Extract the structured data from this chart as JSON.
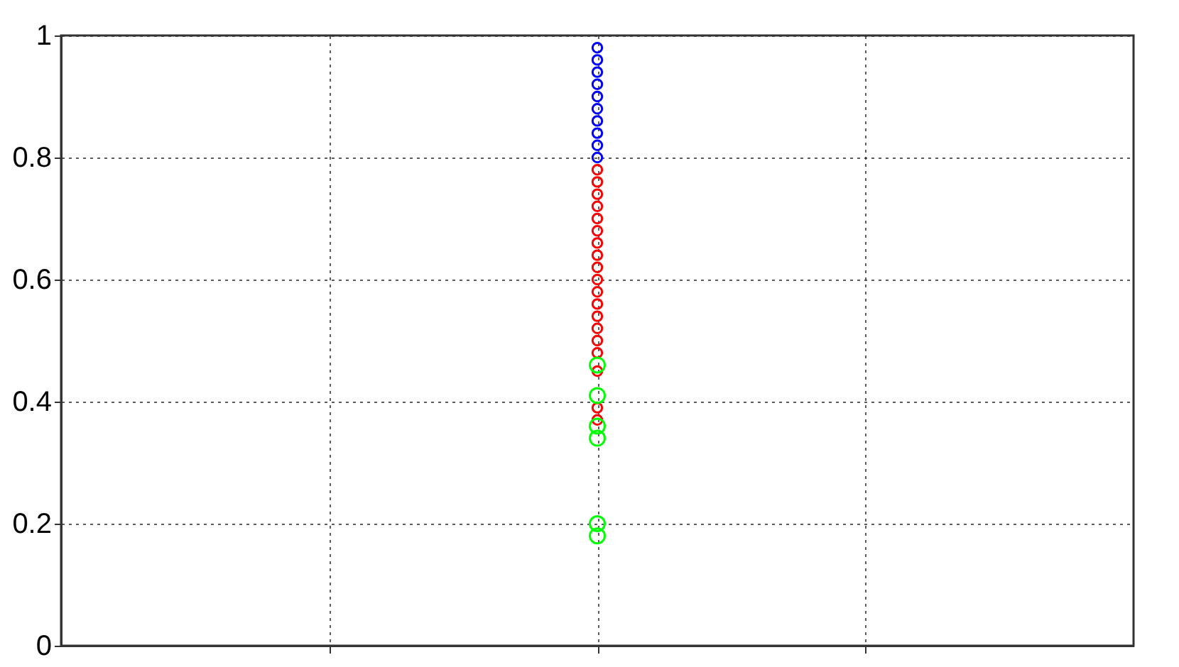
{
  "chart_data": {
    "type": "scatter",
    "categories": [
      null,
      null,
      null
    ],
    "ylim": [
      0,
      1
    ],
    "yticks": [
      0,
      0.2,
      0.4,
      0.6,
      0.8,
      1
    ],
    "grid": true,
    "marker": "circle",
    "tick_labels": "y",
    "series": [
      {
        "color": "#0000ff",
        "values": [
          null,
          0.98,
          null
        ]
      },
      {
        "color": "#0000ff",
        "values": [
          null,
          0.96,
          null
        ]
      },
      {
        "color": "#0000ff",
        "values": [
          null,
          0.94,
          null
        ]
      },
      {
        "color": "#0000ff",
        "values": [
          null,
          0.92,
          null
        ]
      },
      {
        "color": "#0000ff",
        "values": [
          null,
          0.9,
          null
        ]
      },
      {
        "color": "#0000ff",
        "values": [
          null,
          0.88,
          null
        ]
      },
      {
        "color": "#0000ff",
        "values": [
          null,
          0.86,
          null
        ]
      },
      {
        "color": "#0000ff",
        "values": [
          null,
          0.84,
          null
        ]
      },
      {
        "color": "#0000ff",
        "values": [
          null,
          0.82,
          null
        ]
      },
      {
        "color": "#0000ff",
        "values": [
          null,
          0.8,
          null
        ]
      },
      {
        "color": "#ff0000",
        "values": [
          null,
          0.78,
          null
        ]
      },
      {
        "color": "#ff0000",
        "values": [
          null,
          0.76,
          null
        ]
      },
      {
        "color": "#ff0000",
        "values": [
          null,
          0.74,
          null
        ]
      },
      {
        "color": "#ff0000",
        "values": [
          null,
          0.72,
          null
        ]
      },
      {
        "color": "#ff0000",
        "values": [
          null,
          0.7,
          null
        ]
      },
      {
        "color": "#ff0000",
        "values": [
          null,
          0.68,
          null
        ]
      },
      {
        "color": "#ff0000",
        "values": [
          null,
          0.66,
          null
        ]
      },
      {
        "color": "#ff0000",
        "values": [
          null,
          0.64,
          null
        ]
      },
      {
        "color": "#ff0000",
        "values": [
          null,
          0.62,
          null
        ]
      },
      {
        "color": "#ff0000",
        "values": [
          null,
          0.6,
          null
        ]
      },
      {
        "color": "#ff0000",
        "values": [
          null,
          0.58,
          null
        ]
      },
      {
        "color": "#ff0000",
        "values": [
          null,
          0.56,
          null
        ]
      },
      {
        "color": "#ff0000",
        "values": [
          null,
          0.54,
          null
        ]
      },
      {
        "color": "#ff0000",
        "values": [
          null,
          0.52,
          null
        ]
      },
      {
        "color": "#ff0000",
        "values": [
          null,
          0.5,
          null
        ]
      },
      {
        "color": "#ff0000",
        "values": [
          null,
          0.48,
          null
        ]
      },
      {
        "color": "#ff0000",
        "values": [
          null,
          0.45,
          null
        ]
      },
      {
        "color": "#ff0000",
        "values": [
          null,
          0.39,
          null
        ]
      },
      {
        "color": "#ff0000",
        "values": [
          null,
          0.37,
          null
        ]
      },
      {
        "color": "#00ff00",
        "values": [
          null,
          0.46,
          null
        ]
      },
      {
        "color": "#00ff00",
        "values": [
          null,
          0.41,
          null
        ]
      },
      {
        "color": "#00ff00",
        "values": [
          null,
          0.36,
          null
        ]
      },
      {
        "color": "#00ff00",
        "values": [
          null,
          0.34,
          null
        ]
      },
      {
        "color": "#00ff00",
        "values": [
          null,
          0.2,
          null
        ]
      },
      {
        "color": "#00ff00",
        "values": [
          null,
          0.18,
          null
        ]
      }
    ]
  }
}
